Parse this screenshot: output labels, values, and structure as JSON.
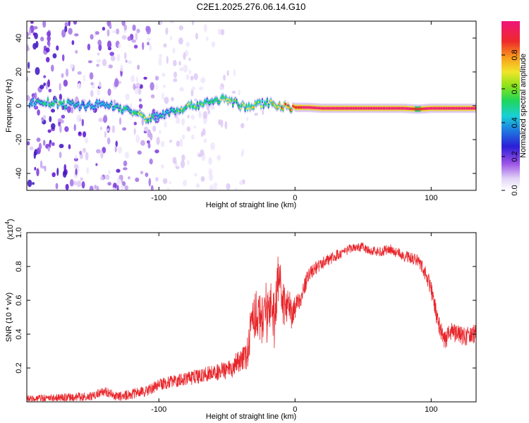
{
  "title": "C2E1.2025.276.06.14.G10",
  "chart_data": [
    {
      "type": "heatmap",
      "title": "C2E1.2025.276.06.14.G10",
      "xlabel": "Height of straight line (km)",
      "ylabel": "Frequency (Hz)",
      "xlim": [
        -197,
        133
      ],
      "ylim": [
        -50,
        50
      ],
      "xticks": [
        -100,
        0,
        100
      ],
      "yticks": [
        -40,
        -20,
        0,
        20,
        40
      ],
      "colorbar": {
        "label": "Normalized spectral amplitude",
        "range": [
          0,
          1
        ],
        "ticks": [
          "0.0",
          "0.2",
          "0.4",
          "0.6",
          "0.8"
        ],
        "tick_values": [
          0.0,
          0.2,
          0.4,
          0.6,
          0.8
        ],
        "colormap": "rainbow (white-purple-blue-cyan-green-yellow-red-magenta)"
      },
      "ridge": {
        "description": "frequency of main spectral peak vs height",
        "height_km": [
          -195,
          -185,
          -170,
          -155,
          -140,
          -125,
          -115,
          -108,
          -100,
          -90,
          -80,
          -70,
          -60,
          -50,
          -45,
          -40,
          -35,
          -30,
          -25,
          -20,
          -15,
          -10,
          -5,
          0,
          10,
          20,
          40,
          60,
          80,
          90,
          100,
          110,
          120,
          133
        ],
        "freq_hz": [
          2,
          2,
          1,
          0,
          1,
          -2,
          -5,
          -8,
          -6,
          -3,
          -1,
          1,
          3,
          4,
          2,
          0,
          -1,
          0,
          1,
          2,
          1,
          0,
          -1,
          -1,
          -1,
          -1.5,
          -1.5,
          -1.5,
          -1.5,
          -2,
          -1.5,
          -1.5,
          -1.5,
          -1.5
        ],
        "amplitude": [
          0.3,
          0.4,
          0.45,
          0.3,
          0.35,
          0.4,
          0.5,
          0.5,
          0.35,
          0.45,
          0.5,
          0.5,
          0.45,
          0.5,
          0.5,
          0.5,
          0.5,
          0.55,
          0.5,
          0.45,
          0.7,
          0.75,
          0.8,
          0.85,
          0.9,
          0.9,
          0.92,
          0.95,
          0.95,
          0.8,
          0.95,
          0.95,
          0.95,
          0.95
        ]
      },
      "noise_region_km": [
        -197,
        -100
      ],
      "colors": {
        "noise_dark": "#6a1fd6",
        "noise_light": "#c9b0f2",
        "ridge_core": "#e8262b",
        "ridge_mid": "#f7e02a",
        "ridge_edge": "#19c5d9"
      }
    },
    {
      "type": "line",
      "xlabel": "Height of straight line (km)",
      "ylabel": "SNR (10 * v/v)",
      "yscale_label": "(x10",
      "yscale_exponent": "4",
      "yscale_suffix": ")",
      "xlim": [
        -197,
        133
      ],
      "ylim": [
        0,
        1.0
      ],
      "xticks": [
        -100,
        0,
        100
      ],
      "yticks": [
        0.2,
        0.4,
        0.6,
        0.8,
        1.0
      ],
      "series": [
        {
          "name": "SNR",
          "color": "#e8262b",
          "envelope_x": [
            -197,
            -170,
            -150,
            -140,
            -130,
            -110,
            -100,
            -90,
            -80,
            -70,
            -60,
            -50,
            -45,
            -40,
            -35,
            -32,
            -28,
            -25,
            -22,
            -20,
            -17,
            -15,
            -12,
            -10,
            -7,
            -5,
            -2,
            0,
            5,
            10,
            20,
            30,
            40,
            50,
            60,
            70,
            75,
            80,
            90,
            95,
            100,
            105,
            110,
            115,
            120,
            125,
            133
          ],
          "envelope_y": [
            0.03,
            0.04,
            0.05,
            0.08,
            0.05,
            0.08,
            0.12,
            0.14,
            0.16,
            0.18,
            0.2,
            0.22,
            0.25,
            0.28,
            0.35,
            0.55,
            0.62,
            0.58,
            0.65,
            0.6,
            0.7,
            0.55,
            0.85,
            0.7,
            0.62,
            0.65,
            0.55,
            0.6,
            0.66,
            0.78,
            0.84,
            0.88,
            0.92,
            0.93,
            0.9,
            0.92,
            0.9,
            0.88,
            0.86,
            0.8,
            0.7,
            0.5,
            0.4,
            0.45,
            0.43,
            0.42,
            0.44
          ],
          "noise_x": [
            -197,
            -100,
            -60,
            -40,
            -30,
            -20,
            -10,
            0,
            10,
            40,
            90,
            100,
            133
          ],
          "noise_amp": [
            0.03,
            0.05,
            0.07,
            0.1,
            0.2,
            0.25,
            0.2,
            0.1,
            0.06,
            0.04,
            0.05,
            0.08,
            0.08
          ]
        }
      ]
    }
  ]
}
